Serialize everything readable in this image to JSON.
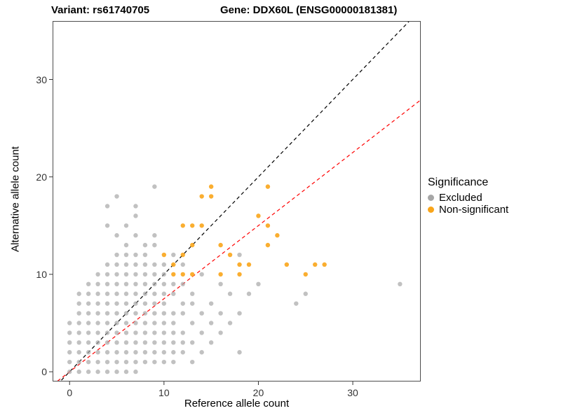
{
  "titles": {
    "variant": "Variant: rs61740705",
    "gene": "Gene: DDX60L (ENSG00000181381)"
  },
  "axes": {
    "x": {
      "label": "Reference allele count",
      "ticks": [
        0,
        10,
        20,
        30
      ]
    },
    "y": {
      "label": "Alternative allele count",
      "ticks": [
        0,
        10,
        20,
        30
      ]
    }
  },
  "legend": {
    "title": "Significance",
    "entries": [
      {
        "label": "Excluded",
        "color": "#A6A6A6"
      },
      {
        "label": "Non-significant",
        "color": "#F9A51A"
      }
    ]
  },
  "chart_data": {
    "type": "scatter",
    "title": "Variant: rs61740705 / Gene: DDX60L (ENSG00000181381)",
    "xlabel": "Reference allele count",
    "ylabel": "Alternative allele count",
    "xlim": [
      -1.8,
      37.2
    ],
    "ylim": [
      -1.0,
      36.0
    ],
    "grid": false,
    "legend_position": "right",
    "lines": [
      {
        "name": "identity",
        "slope": 1.0,
        "intercept": 0.0,
        "color": "#000000",
        "dash": "5 4"
      },
      {
        "name": "fit",
        "slope": 0.75,
        "intercept": 0.0,
        "color": "#FF0000",
        "dash": "5 4"
      }
    ],
    "series": [
      {
        "name": "Excluded",
        "color": "#A6A6A6",
        "opacity": 0.7,
        "points": [
          [
            0,
            0
          ],
          [
            1,
            0
          ],
          [
            2,
            0
          ],
          [
            3,
            0
          ],
          [
            4,
            0
          ],
          [
            5,
            0
          ],
          [
            6,
            0
          ],
          [
            7,
            0
          ],
          [
            0,
            1
          ],
          [
            1,
            1
          ],
          [
            2,
            1
          ],
          [
            3,
            1
          ],
          [
            4,
            1
          ],
          [
            5,
            1
          ],
          [
            6,
            1
          ],
          [
            7,
            1
          ],
          [
            8,
            1
          ],
          [
            9,
            1
          ],
          [
            10,
            1
          ],
          [
            11,
            1
          ],
          [
            13,
            1
          ],
          [
            0,
            2
          ],
          [
            1,
            2
          ],
          [
            2,
            2
          ],
          [
            3,
            2
          ],
          [
            4,
            2
          ],
          [
            5,
            2
          ],
          [
            6,
            2
          ],
          [
            7,
            2
          ],
          [
            8,
            2
          ],
          [
            9,
            2
          ],
          [
            10,
            2
          ],
          [
            11,
            2
          ],
          [
            12,
            2
          ],
          [
            14,
            2
          ],
          [
            18,
            2
          ],
          [
            0,
            3
          ],
          [
            1,
            3
          ],
          [
            2,
            3
          ],
          [
            3,
            3
          ],
          [
            4,
            3
          ],
          [
            5,
            3
          ],
          [
            6,
            3
          ],
          [
            7,
            3
          ],
          [
            8,
            3
          ],
          [
            9,
            3
          ],
          [
            10,
            3
          ],
          [
            11,
            3
          ],
          [
            12,
            3
          ],
          [
            13,
            3
          ],
          [
            15,
            3
          ],
          [
            0,
            4
          ],
          [
            1,
            4
          ],
          [
            2,
            4
          ],
          [
            3,
            4
          ],
          [
            4,
            4
          ],
          [
            5,
            4
          ],
          [
            6,
            4
          ],
          [
            7,
            4
          ],
          [
            8,
            4
          ],
          [
            9,
            4
          ],
          [
            10,
            4
          ],
          [
            11,
            4
          ],
          [
            12,
            4
          ],
          [
            14,
            4
          ],
          [
            16,
            4
          ],
          [
            0,
            5
          ],
          [
            1,
            5
          ],
          [
            2,
            5
          ],
          [
            3,
            5
          ],
          [
            4,
            5
          ],
          [
            5,
            5
          ],
          [
            6,
            5
          ],
          [
            7,
            5
          ],
          [
            8,
            5
          ],
          [
            9,
            5
          ],
          [
            10,
            5
          ],
          [
            11,
            5
          ],
          [
            13,
            5
          ],
          [
            15,
            5
          ],
          [
            17,
            5
          ],
          [
            1,
            6
          ],
          [
            2,
            6
          ],
          [
            3,
            6
          ],
          [
            4,
            6
          ],
          [
            5,
            6
          ],
          [
            6,
            6
          ],
          [
            7,
            6
          ],
          [
            8,
            6
          ],
          [
            9,
            6
          ],
          [
            10,
            6
          ],
          [
            11,
            6
          ],
          [
            12,
            6
          ],
          [
            14,
            6
          ],
          [
            16,
            6
          ],
          [
            18,
            6
          ],
          [
            1,
            7
          ],
          [
            2,
            7
          ],
          [
            3,
            7
          ],
          [
            4,
            7
          ],
          [
            5,
            7
          ],
          [
            6,
            7
          ],
          [
            7,
            7
          ],
          [
            8,
            7
          ],
          [
            9,
            7
          ],
          [
            10,
            7
          ],
          [
            12,
            7
          ],
          [
            13,
            7
          ],
          [
            15,
            7
          ],
          [
            24,
            7
          ],
          [
            1,
            8
          ],
          [
            2,
            8
          ],
          [
            3,
            8
          ],
          [
            4,
            8
          ],
          [
            5,
            8
          ],
          [
            6,
            8
          ],
          [
            7,
            8
          ],
          [
            8,
            8
          ],
          [
            9,
            8
          ],
          [
            10,
            8
          ],
          [
            11,
            8
          ],
          [
            13,
            8
          ],
          [
            17,
            8
          ],
          [
            19,
            8
          ],
          [
            25,
            8
          ],
          [
            2,
            9
          ],
          [
            3,
            9
          ],
          [
            4,
            9
          ],
          [
            5,
            9
          ],
          [
            6,
            9
          ],
          [
            7,
            9
          ],
          [
            8,
            9
          ],
          [
            9,
            9
          ],
          [
            10,
            9
          ],
          [
            11,
            9
          ],
          [
            12,
            9
          ],
          [
            16,
            9
          ],
          [
            20,
            9
          ],
          [
            35,
            9
          ],
          [
            3,
            10
          ],
          [
            4,
            10
          ],
          [
            5,
            10
          ],
          [
            6,
            10
          ],
          [
            7,
            10
          ],
          [
            8,
            10
          ],
          [
            9,
            10
          ],
          [
            10,
            10
          ],
          [
            14,
            10
          ],
          [
            4,
            11
          ],
          [
            5,
            11
          ],
          [
            6,
            11
          ],
          [
            7,
            11
          ],
          [
            8,
            11
          ],
          [
            9,
            11
          ],
          [
            10,
            11
          ],
          [
            12,
            11
          ],
          [
            5,
            12
          ],
          [
            6,
            12
          ],
          [
            7,
            12
          ],
          [
            8,
            12
          ],
          [
            11,
            12
          ],
          [
            18,
            12
          ],
          [
            6,
            13
          ],
          [
            8,
            13
          ],
          [
            9,
            13
          ],
          [
            5,
            14
          ],
          [
            7,
            14
          ],
          [
            9,
            14
          ],
          [
            4,
            15
          ],
          [
            6,
            15
          ],
          [
            7,
            16
          ],
          [
            4,
            17
          ],
          [
            7,
            17
          ],
          [
            5,
            18
          ],
          [
            9,
            19
          ]
        ]
      },
      {
        "name": "Non-significant",
        "color": "#F9A51A",
        "opacity": 0.9,
        "points": [
          [
            11,
            10
          ],
          [
            12,
            10
          ],
          [
            13,
            10
          ],
          [
            16,
            10
          ],
          [
            18,
            10
          ],
          [
            25,
            10
          ],
          [
            11,
            11
          ],
          [
            18,
            11
          ],
          [
            19,
            11
          ],
          [
            23,
            11
          ],
          [
            26,
            11
          ],
          [
            27,
            11
          ],
          [
            10,
            12
          ],
          [
            12,
            12
          ],
          [
            17,
            12
          ],
          [
            13,
            13
          ],
          [
            16,
            13
          ],
          [
            21,
            13
          ],
          [
            22,
            14
          ],
          [
            12,
            15
          ],
          [
            13,
            15
          ],
          [
            14,
            15
          ],
          [
            21,
            15
          ],
          [
            20,
            16
          ],
          [
            14,
            18
          ],
          [
            15,
            18
          ],
          [
            15,
            19
          ],
          [
            21,
            19
          ]
        ]
      }
    ]
  }
}
